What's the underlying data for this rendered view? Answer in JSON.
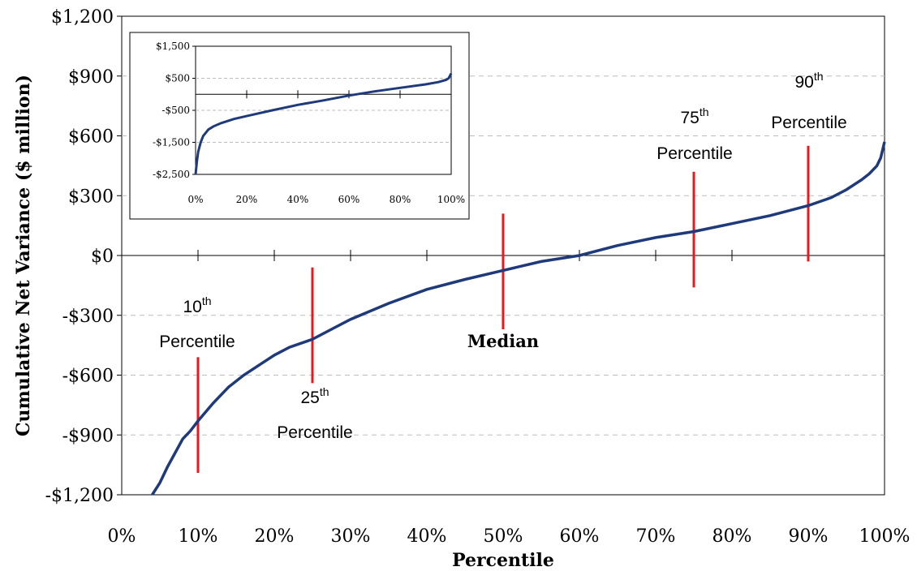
{
  "chart_data": [
    {
      "type": "line",
      "title": "",
      "xlabel": "Percentile",
      "ylabel": "Cumulative Net Variance ($ million)",
      "xlim": [
        0,
        100
      ],
      "ylim": [
        -1200,
        1200
      ],
      "x_ticks": [
        0,
        10,
        20,
        30,
        40,
        50,
        60,
        70,
        80,
        90,
        100
      ],
      "x_tick_labels": [
        "0%",
        "10%",
        "20%",
        "30%",
        "40%",
        "50%",
        "60%",
        "70%",
        "80%",
        "90%",
        "100%"
      ],
      "y_ticks": [
        1200,
        900,
        600,
        300,
        0,
        -300,
        -600,
        -900,
        -1200
      ],
      "y_tick_labels": [
        "$1,200",
        "$900",
        "$600",
        "$300",
        "$0",
        "-$300",
        "-$600",
        "-$900",
        "-$1,200"
      ],
      "grid": "horizontal-dashed",
      "line_color": "#1f3a7a",
      "marker_color": "#e8181e",
      "series": [
        {
          "x": [
            4,
            5,
            6,
            7,
            8,
            9,
            10,
            12,
            14,
            16,
            18,
            20,
            22,
            25,
            28,
            30,
            35,
            40,
            45,
            50,
            55,
            60,
            65,
            70,
            75,
            80,
            85,
            90,
            93,
            95,
            97,
            98,
            99,
            99.5,
            100
          ],
          "values": [
            -1200,
            -1140,
            -1060,
            -990,
            -920,
            -880,
            -830,
            -740,
            -660,
            -600,
            -550,
            -500,
            -460,
            -420,
            -360,
            -320,
            -240,
            -170,
            -120,
            -75,
            -30,
            0,
            50,
            90,
            120,
            160,
            200,
            250,
            290,
            330,
            380,
            410,
            450,
            490,
            570
          ]
        }
      ],
      "annotations": [
        {
          "label": "10",
          "sup": "th",
          "line2": "Percentile",
          "x": 10,
          "y_from": -1090,
          "y_to": -510
        },
        {
          "label": "25",
          "sup": "th",
          "line2": "Percentile",
          "x": 25,
          "y_from": -640,
          "y_to": -60
        },
        {
          "label": "Median",
          "x": 50,
          "y_from": -370,
          "y_to": 210
        },
        {
          "label": "75",
          "sup": "th",
          "line2": "Percentile",
          "x": 75,
          "y_from": -160,
          "y_to": 420
        },
        {
          "label": "90",
          "sup": "th",
          "line2": "Percentile",
          "x": 90,
          "y_from": -30,
          "y_to": 550
        }
      ]
    },
    {
      "type": "line",
      "title": "",
      "xlim": [
        0,
        100
      ],
      "ylim": [
        -2500,
        1500
      ],
      "x_ticks": [
        0,
        20,
        40,
        60,
        80,
        100
      ],
      "x_tick_labels": [
        "0%",
        "20%",
        "40%",
        "60%",
        "80%",
        "100%"
      ],
      "y_ticks": [
        1500,
        500,
        -500,
        -1500,
        -2500
      ],
      "y_tick_labels": [
        "$1,500",
        "$500",
        "-$500",
        "-$1,500",
        "-$2,500"
      ],
      "grid": "horizontal-dashed",
      "series": [
        {
          "x": [
            0,
            0.5,
            1,
            2,
            3,
            4,
            5,
            7,
            10,
            15,
            20,
            30,
            40,
            50,
            60,
            70,
            80,
            90,
            95,
            98,
            99,
            100
          ],
          "values": [
            -2500,
            -2100,
            -1800,
            -1500,
            -1300,
            -1200,
            -1100,
            -1000,
            -900,
            -770,
            -680,
            -500,
            -330,
            -190,
            -40,
            90,
            200,
            310,
            380,
            450,
            500,
            650
          ]
        }
      ]
    }
  ]
}
